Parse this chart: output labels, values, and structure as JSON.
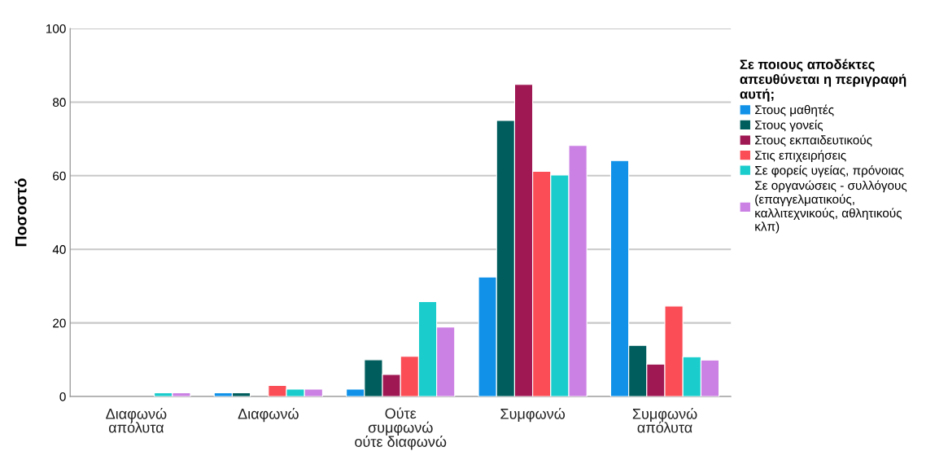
{
  "chart_data": {
    "type": "bar",
    "ylabel": "Ποσοστό",
    "legend_title": "Σε ποιους αποδέκτες\nαπευθύνεται η περιγραφή\nαυτή;",
    "categories": [
      "Διαφωνώ\nαπόλυτα",
      "Διαφωνώ",
      "Ούτε\nσυμφωνώ\nούτε διαφωνώ",
      "Συμφωνώ",
      "Συμφωνώ\nαπόλυτα"
    ],
    "series": [
      {
        "name": "Στους μαθητές",
        "color": "#1192e8",
        "values": [
          0,
          1,
          2,
          32.5,
          64.1
        ]
      },
      {
        "name": "Στους γονείς",
        "color": "#005d5d",
        "values": [
          0,
          1,
          10,
          75.0,
          13.9
        ]
      },
      {
        "name": "Στους εκπαιδευτικούς",
        "color": "#9f1853",
        "values": [
          0,
          0,
          6,
          84.8,
          8.8
        ]
      },
      {
        "name": "Στις επιχειρήσεις",
        "color": "#fa4d56",
        "values": [
          0,
          3,
          10.9,
          61.2,
          24.6
        ]
      },
      {
        "name": "Σε φορείς υγείας, πρόνοιας",
        "color": "#1bcccc",
        "values": [
          1,
          2,
          25.8,
          60.2,
          10.8
        ]
      },
      {
        "name": "Σε οργανώσεις - συλλόγους\n(επαγγελματικούς,\nκαλλιτεχνικούς, αθλητικούς\nκλπ)",
        "color": "#cb81e3",
        "values": [
          1,
          2,
          18.9,
          68.2,
          9.9
        ]
      }
    ],
    "ylim": [
      0,
      100
    ],
    "yticks": [
      0,
      20,
      40,
      60,
      80,
      100
    ],
    "grid": "y",
    "legend": "right"
  }
}
